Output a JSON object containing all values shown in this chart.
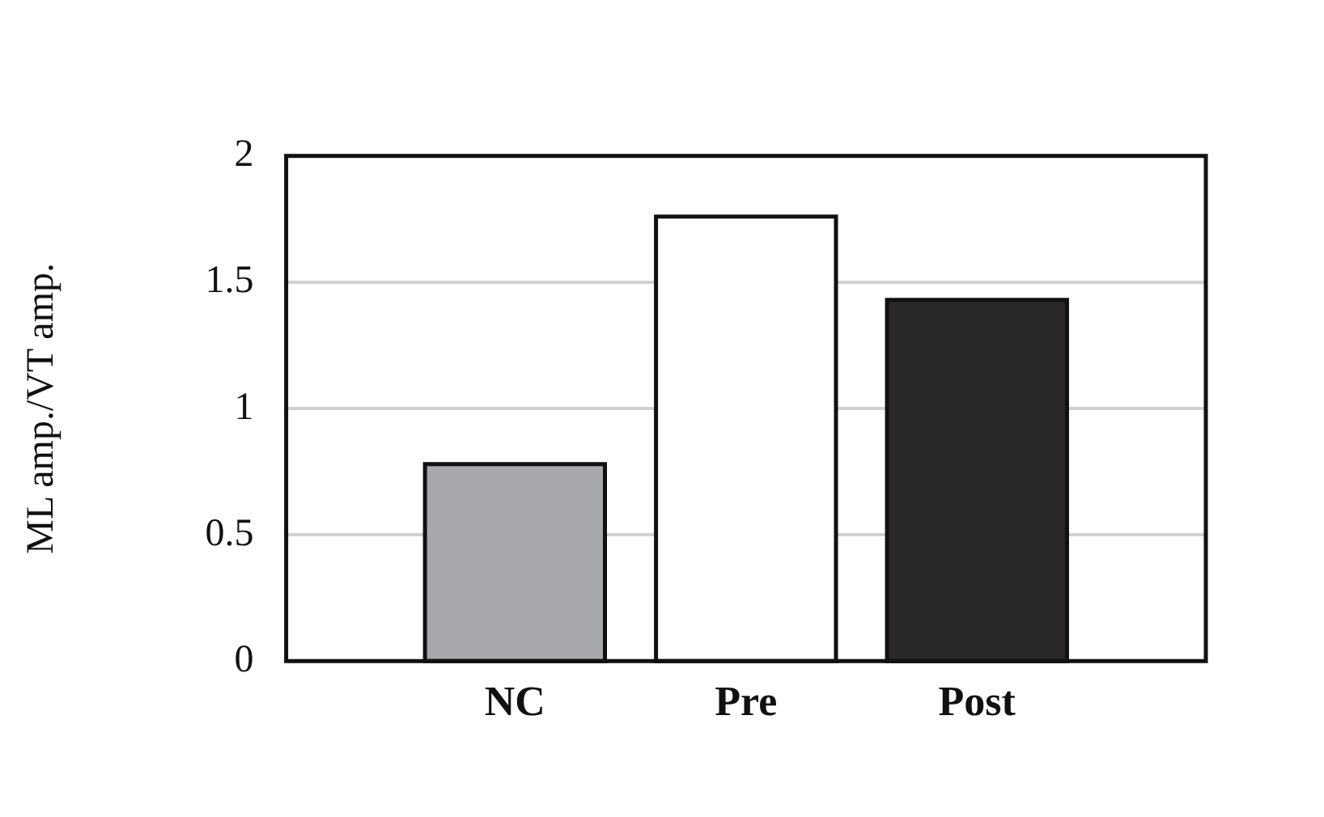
{
  "chart_data": {
    "type": "bar",
    "ylabel": "ML amp./VT amp.",
    "categories": [
      "NC",
      "Pre",
      "Post"
    ],
    "values": [
      0.78,
      1.76,
      1.43
    ],
    "colors": [
      "#a7a8ab",
      "#ffffff",
      "#2a2829"
    ],
    "ylim": [
      0,
      2
    ],
    "yticks": [
      0,
      0.5,
      1,
      1.5,
      2
    ],
    "grid": "y",
    "legend": false
  }
}
